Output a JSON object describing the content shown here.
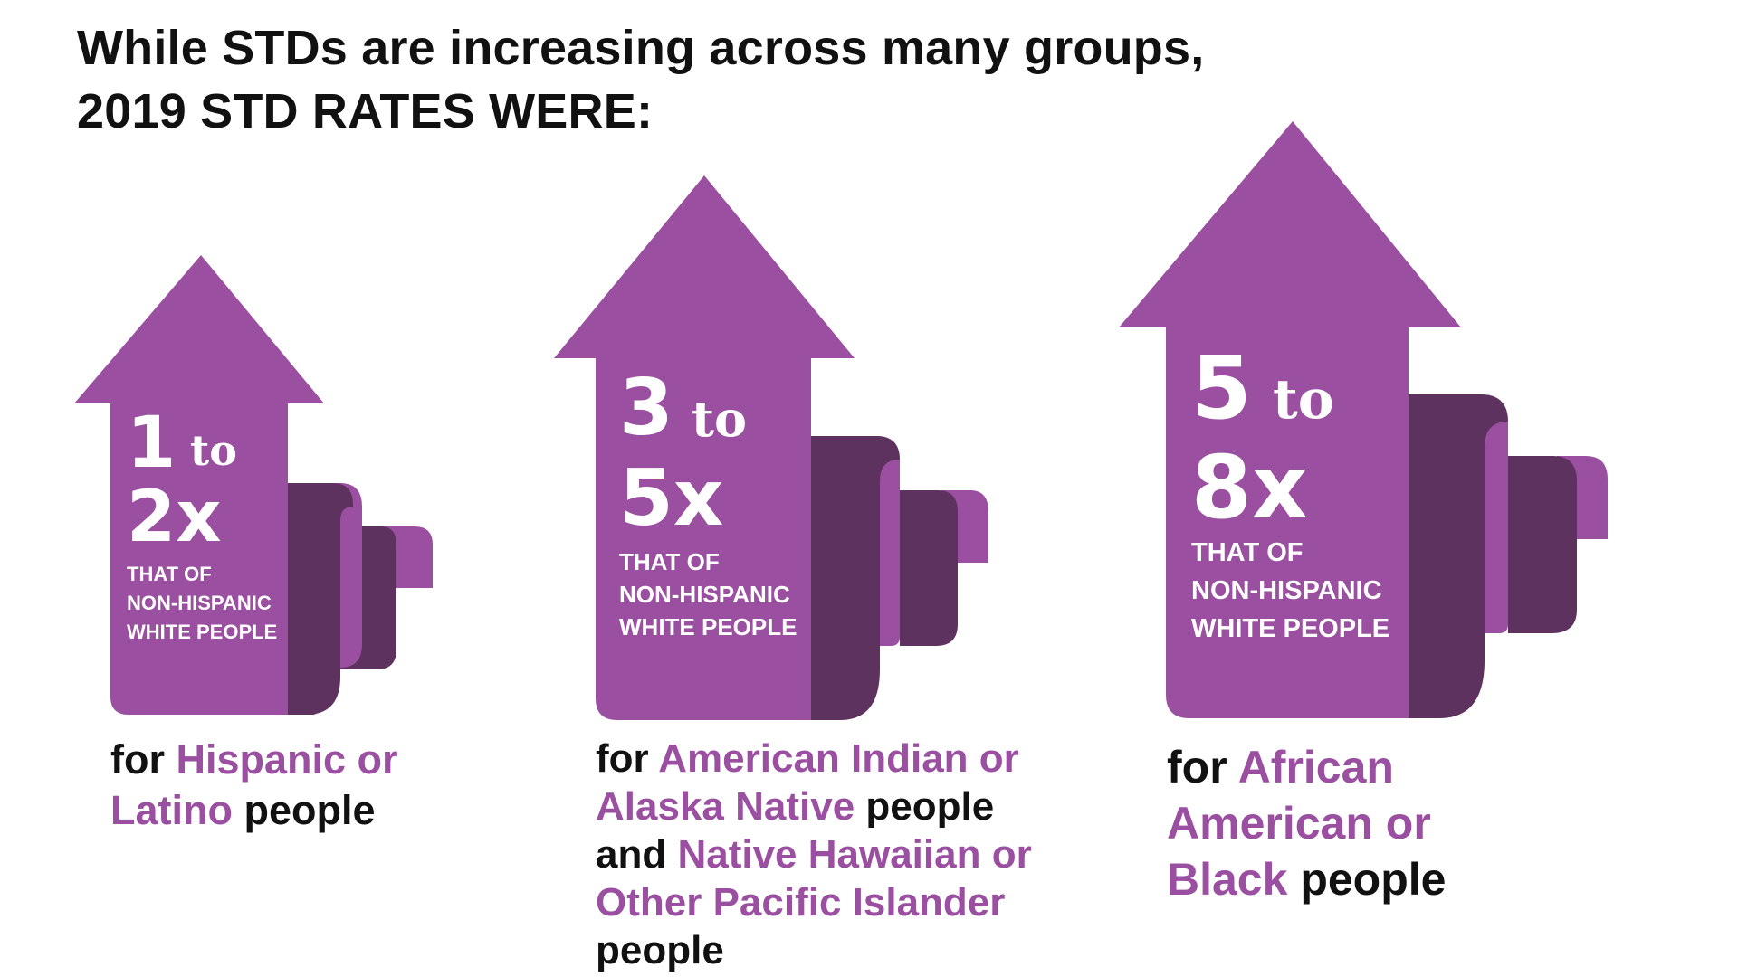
{
  "title": {
    "line1": "While STDs are increasing across many groups,",
    "line2": "2019 STD RATES WERE:"
  },
  "colors": {
    "arrow": "#9a4fa0",
    "fold_dark": "#5e325e",
    "highlight": "#9a4fa0",
    "text": "#111111"
  },
  "items": [
    {
      "num1": "1",
      "to": "to",
      "num2": "2x",
      "sub": [
        "THAT OF",
        "NON-HISPANIC",
        "WHITE PEOPLE"
      ],
      "caption": [
        {
          "t": "for ",
          "hl": false
        },
        {
          "t": "Hispanic or Latino",
          "hl": true
        },
        {
          "t": " people",
          "hl": false
        }
      ]
    },
    {
      "num1": "3",
      "to": "to",
      "num2": "5x",
      "sub": [
        "THAT OF",
        "NON-HISPANIC",
        "WHITE PEOPLE"
      ],
      "caption": [
        {
          "t": "for ",
          "hl": false
        },
        {
          "t": "American Indian or Alaska Native",
          "hl": true
        },
        {
          "t": " people and ",
          "hl": false
        },
        {
          "t": "Native Hawaiian or Other Pacific Islander",
          "hl": true
        },
        {
          "t": " people",
          "hl": false
        }
      ]
    },
    {
      "num1": "5",
      "to": "to",
      "num2": "8x",
      "sub": [
        "THAT OF",
        "NON-HISPANIC",
        "WHITE PEOPLE"
      ],
      "caption": [
        {
          "t": "for ",
          "hl": false
        },
        {
          "t": "African American or Black",
          "hl": true
        },
        {
          "t": " people",
          "hl": false
        }
      ]
    }
  ]
}
